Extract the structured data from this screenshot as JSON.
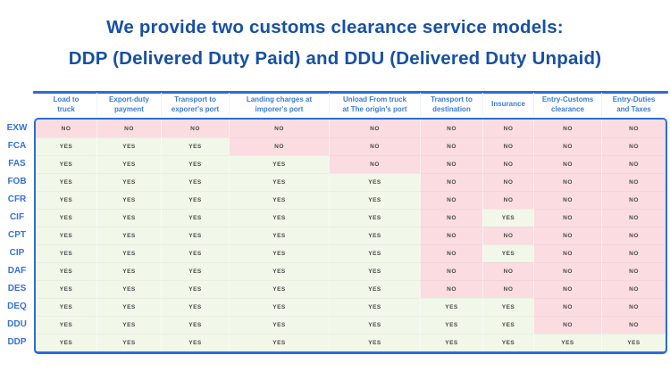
{
  "page": {
    "title_line1": "We provide two customs clearance service models:",
    "title_line2": "DDP (Delivered Duty Paid) and DDU (Delivered Duty Unpaid)"
  },
  "colors": {
    "title": "#1751A3",
    "header_text": "#3D7BD1",
    "row_label": "#3672D9",
    "table_border": "#2D6BDB",
    "yes_bg": "#F1F7E9",
    "no_bg": "#FADCE1",
    "cell_text": "#4A4A4A"
  },
  "chart_data": {
    "type": "table",
    "title": "We provide two customs clearance service models: DDP (Delivered Duty Paid) and DDU (Delivered Duty Unpaid)",
    "columns": [
      "Load to\ntruck",
      "Export-duty\npayment",
      "Transport to\nexporer's port",
      "Landing charges at\nimporer's port",
      "Unload From truck\nat The origin's port",
      "Transport to\ndestination",
      "Insurance",
      "Entry-Customs\nclearance",
      "Entry-Duties\nand Taxes"
    ],
    "rows": [
      {
        "label": "EXW",
        "values": [
          "NO",
          "NO",
          "NO",
          "NO",
          "NO",
          "NO",
          "NO",
          "NO",
          "NO"
        ]
      },
      {
        "label": "FCA",
        "values": [
          "YES",
          "YES",
          "YES",
          "NO",
          "NO",
          "NO",
          "NO",
          "NO",
          "NO"
        ]
      },
      {
        "label": "FAS",
        "values": [
          "YES",
          "YES",
          "YES",
          "YES",
          "NO",
          "NO",
          "NO",
          "NO",
          "NO"
        ]
      },
      {
        "label": "FOB",
        "values": [
          "YES",
          "YES",
          "YES",
          "YES",
          "YES",
          "NO",
          "NO",
          "NO",
          "NO"
        ]
      },
      {
        "label": "CFR",
        "values": [
          "YES",
          "YES",
          "YES",
          "YES",
          "YES",
          "NO",
          "NO",
          "NO",
          "NO"
        ]
      },
      {
        "label": "CIF",
        "values": [
          "YES",
          "YES",
          "YES",
          "YES",
          "YES",
          "NO",
          "YES",
          "NO",
          "NO"
        ]
      },
      {
        "label": "CPT",
        "values": [
          "YES",
          "YES",
          "YES",
          "YES",
          "YES",
          "NO",
          "NO",
          "NO",
          "NO"
        ]
      },
      {
        "label": "CIP",
        "values": [
          "YES",
          "YES",
          "YES",
          "YES",
          "YES",
          "NO",
          "YES",
          "NO",
          "NO"
        ]
      },
      {
        "label": "DAF",
        "values": [
          "YES",
          "YES",
          "YES",
          "YES",
          "YES",
          "NO",
          "NO",
          "NO",
          "NO"
        ]
      },
      {
        "label": "DES",
        "values": [
          "YES",
          "YES",
          "YES",
          "YES",
          "YES",
          "NO",
          "NO",
          "NO",
          "NO"
        ]
      },
      {
        "label": "DEQ",
        "values": [
          "YES",
          "YES",
          "YES",
          "YES",
          "YES",
          "YES",
          "YES",
          "NO",
          "NO"
        ]
      },
      {
        "label": "DDU",
        "values": [
          "YES",
          "YES",
          "YES",
          "YES",
          "YES",
          "YES",
          "YES",
          "NO",
          "NO"
        ]
      },
      {
        "label": "DDP",
        "values": [
          "YES",
          "YES",
          "YES",
          "YES",
          "YES",
          "YES",
          "YES",
          "YES",
          "YES"
        ]
      }
    ]
  }
}
